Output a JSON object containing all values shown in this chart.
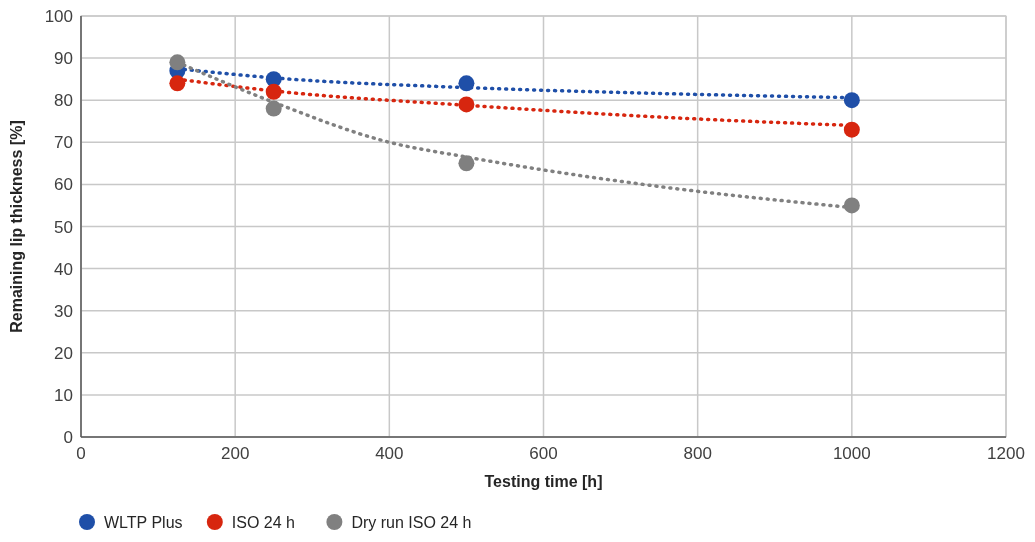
{
  "chart_data": {
    "type": "scatter",
    "xlabel": "Testing time [h]",
    "ylabel": "Remaining lip thickness [%]",
    "xlim": [
      0,
      1200
    ],
    "xticks": [
      0,
      200,
      400,
      600,
      800,
      1000,
      1200
    ],
    "ylim": [
      0,
      100
    ],
    "yticks": [
      0,
      10,
      20,
      30,
      40,
      50,
      60,
      70,
      80,
      90,
      100
    ],
    "grid": true,
    "legend": "bottom left",
    "marker": "circle",
    "series": [
      {
        "type": "line",
        "marker": "none",
        "color": "#1f4fa8",
        "line_style": "dotted",
        "x": [
          125,
          250,
          500,
          750,
          1000
        ],
        "values": [
          87.5,
          85.3,
          83,
          81.6,
          80.6
        ]
      },
      {
        "type": "line",
        "marker": "none",
        "color": "#d7260f",
        "line_style": "dotted",
        "x": [
          125,
          250,
          500,
          750,
          1000
        ],
        "values": [
          85,
          82.2,
          78.8,
          76,
          74
        ]
      },
      {
        "type": "line",
        "marker": "none",
        "color": "#808080",
        "line_style": "dotted",
        "x": [
          125,
          250,
          400,
          500,
          750,
          1000
        ],
        "values": [
          89,
          79.5,
          70,
          66.5,
          59.5,
          54.5
        ]
      },
      {
        "name": "WLTP Plus",
        "color": "#1f4fa8",
        "x": [
          125,
          250,
          500,
          1000
        ],
        "values": [
          87,
          85,
          84,
          80
        ]
      },
      {
        "name": "ISO 24 h",
        "color": "#d7260f",
        "x": [
          125,
          250,
          500,
          1000
        ],
        "values": [
          84,
          82,
          79,
          73
        ]
      },
      {
        "name": "Dry run ISO 24 h",
        "color": "#808080",
        "x": [
          125,
          250,
          500,
          1000
        ],
        "values": [
          89,
          78,
          65,
          55
        ]
      }
    ]
  }
}
